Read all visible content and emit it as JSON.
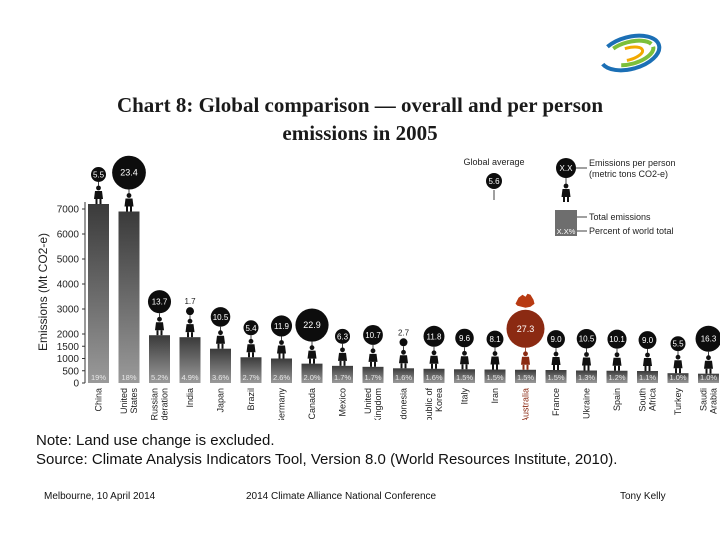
{
  "title_line1": "Chart 8:  Global comparison — overall and per person",
  "title_line2": "emissions in 2005",
  "note": "Note: Land use change is excluded.",
  "source": "Source:  Climate Analysis Indicators Tool, Version 8.0 (World Resources Institute, 2010).",
  "footer": {
    "left": "Melbourne, 10 April 2014",
    "center": "2014 Climate Alliance National Conference",
    "right": "Tony Kelly"
  },
  "colors": {
    "bar_dark": "#3a3a3a",
    "bar_light": "#9a9a9a",
    "balloon": "#0d0d0d",
    "highlight": "#8b2a12",
    "logo_blue": "#1b6fb5",
    "logo_green": "#7cbf3a"
  },
  "chart_data": {
    "type": "bar",
    "ylabel": "Emissions (Mt CO2-e)",
    "yticks": [
      0,
      500,
      1000,
      1500,
      2000,
      3000,
      4000,
      5000,
      6000,
      7000
    ],
    "highlight_category": "Australia",
    "categories": [
      "China",
      "United States",
      "Russian Federation",
      "India",
      "Japan",
      "Brazil",
      "Germany",
      "Canada",
      "Mexico",
      "United Kingdom",
      "Indonesia",
      "Republic of Korea",
      "Italy",
      "Iran",
      "Australia",
      "France",
      "Ukraine",
      "Spain",
      "South Africa",
      "Turkey",
      "Saudi Arabia"
    ],
    "values": [
      7200,
      6900,
      1950,
      1870,
      1400,
      1050,
      1000,
      790,
      700,
      660,
      600,
      580,
      560,
      550,
      540,
      530,
      510,
      500,
      490,
      400,
      380
    ],
    "shares": [
      "19%",
      "18%",
      "5.2%",
      "4.9%",
      "3.6%",
      "2.7%",
      "2.6%",
      "2.0%",
      "1.7%",
      "1.7%",
      "1.6%",
      "1.6%",
      "1.5%",
      "1.5%",
      "1.5%",
      "1.5%",
      "1.3%",
      "1.2%",
      "1.1%",
      "1.0%",
      "1.0%"
    ],
    "per_person": [
      "5.5",
      "23.4",
      "13.7",
      "1.7",
      "10.5",
      "5.4",
      "11.9",
      "22.9",
      "6.3",
      "10.7",
      "2.7",
      "11.8",
      "9.6",
      "8.1",
      "27.3",
      "9.0",
      "10.5",
      "10.1",
      "9.0",
      "5.5",
      "16.3"
    ],
    "legend": {
      "global_average_label": "Global average",
      "global_average_value": "5.6",
      "balloon_placeholder": "X.X",
      "bar_placeholder": "X.X%",
      "per_person_label": "Emissions per person",
      "per_person_unit": "(metric tons CO2-e)",
      "total_label": "Total emissions",
      "percent_label": "Percent of world total"
    }
  }
}
